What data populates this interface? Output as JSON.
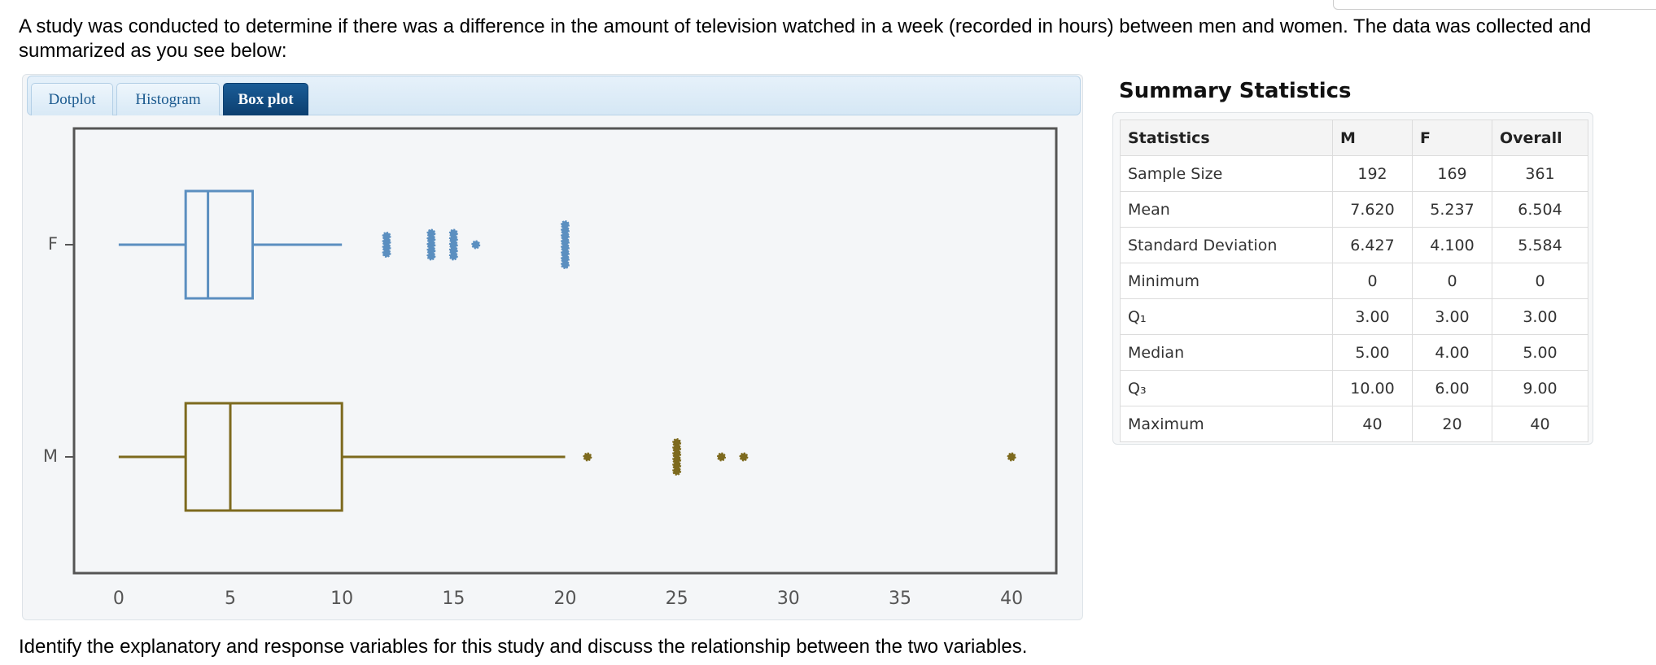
{
  "intro": "A study was conducted to determine if there was a difference in the amount of television watched in a week (recorded in hours) between men and women. The data was collected and summarized as you see below:",
  "tabs": [
    "Dotplot",
    "Histogram",
    "Box plot"
  ],
  "chart_data": {
    "type": "box",
    "categories": [
      "F",
      "M"
    ],
    "boxes": [
      {
        "color": "#5b8fc0",
        "low": 0,
        "q1": 3,
        "median": 4,
        "q3": 6,
        "high": 10,
        "outliers": [
          12,
          12,
          12,
          12,
          14,
          14,
          14,
          14,
          14,
          15,
          15,
          15,
          15,
          15,
          16,
          20,
          20,
          20,
          20,
          20,
          20,
          20,
          20
        ]
      },
      {
        "color": "#7d6a1e",
        "low": 0,
        "q1": 3,
        "median": 5,
        "q3": 10,
        "high": 20,
        "outliers": [
          21,
          25,
          25,
          25,
          25,
          25,
          25,
          27,
          28,
          40
        ]
      }
    ],
    "xlim": [
      -2,
      42
    ],
    "xticks": [
      0,
      5,
      10,
      15,
      20,
      25,
      30,
      35,
      40
    ]
  },
  "summary": {
    "title": "Summary Statistics",
    "header": [
      "Statistics",
      "M",
      "F",
      "Overall"
    ],
    "rows": [
      [
        "Sample Size",
        "192",
        "169",
        "361"
      ],
      [
        "Mean",
        "7.620",
        "5.237",
        "6.504"
      ],
      [
        "Standard Deviation",
        "6.427",
        "4.100",
        "5.584"
      ],
      [
        "Minimum",
        "0",
        "0",
        "0"
      ],
      [
        "Q₁",
        "3.00",
        "3.00",
        "3.00"
      ],
      [
        "Median",
        "5.00",
        "4.00",
        "5.00"
      ],
      [
        "Q₃",
        "10.00",
        "6.00",
        "9.00"
      ],
      [
        "Maximum",
        "40",
        "20",
        "40"
      ]
    ]
  },
  "question": "Identify the explanatory and response variables for this study and discuss the relationship between the two variables."
}
